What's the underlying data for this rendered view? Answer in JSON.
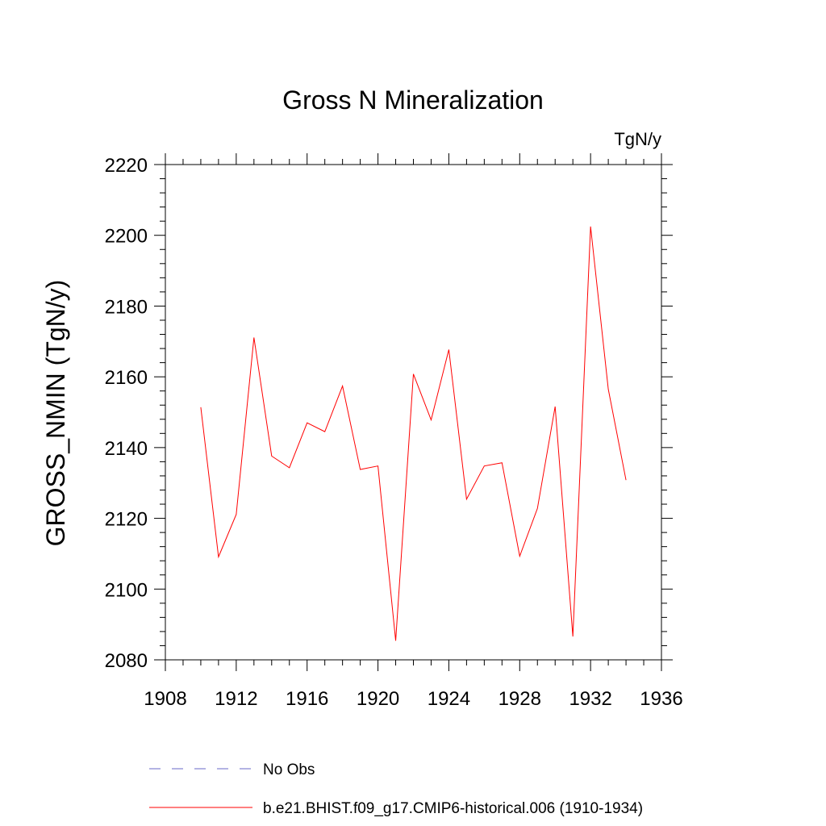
{
  "chart_data": {
    "type": "line",
    "title": "Gross N Mineralization",
    "units": "TgN/y",
    "xlabel": "",
    "ylabel": "GROSS_NMIN  (TgN/y)",
    "xlim": [
      1908,
      1936
    ],
    "ylim": [
      2080,
      2220
    ],
    "x_ticks": [
      1908,
      1912,
      1916,
      1920,
      1924,
      1928,
      1932,
      1936
    ],
    "x_tick_labels": [
      "1908",
      "1912",
      "1916",
      "1920",
      "1924",
      "1928",
      "1932",
      "1936"
    ],
    "y_ticks": [
      2080,
      2100,
      2120,
      2140,
      2160,
      2180,
      2200,
      2220
    ],
    "y_tick_labels": [
      "2080",
      "2100",
      "2120",
      "2140",
      "2160",
      "2180",
      "2200",
      "2220"
    ],
    "x_minor_step": 1,
    "y_minor_step": 4,
    "grid": false,
    "legend_position": "bottom",
    "series": [
      {
        "name": "No Obs",
        "color": "#6a6ac8",
        "dash": "dashed",
        "x": [],
        "values": []
      },
      {
        "name": "b.e21.BHIST.f09_g17.CMIP6-historical.006 (1910-1934)",
        "color": "#ff0000",
        "dash": "solid",
        "x": [
          1910,
          1911,
          1912,
          1913,
          1914,
          1915,
          1916,
          1917,
          1918,
          1919,
          1920,
          1921,
          1922,
          1923,
          1924,
          1925,
          1926,
          1927,
          1928,
          1929,
          1930,
          1931,
          1932,
          1933,
          1934
        ],
        "values": [
          2151.4,
          2109.1,
          2121.1,
          2171.1,
          2137.6,
          2134.3,
          2147.0,
          2144.5,
          2157.4,
          2133.8,
          2134.8,
          2085.4,
          2160.8,
          2147.8,
          2167.7,
          2125.4,
          2134.8,
          2135.7,
          2109.3,
          2122.8,
          2151.6,
          2086.6,
          2202.5,
          2156.5,
          2130.8
        ]
      }
    ]
  }
}
